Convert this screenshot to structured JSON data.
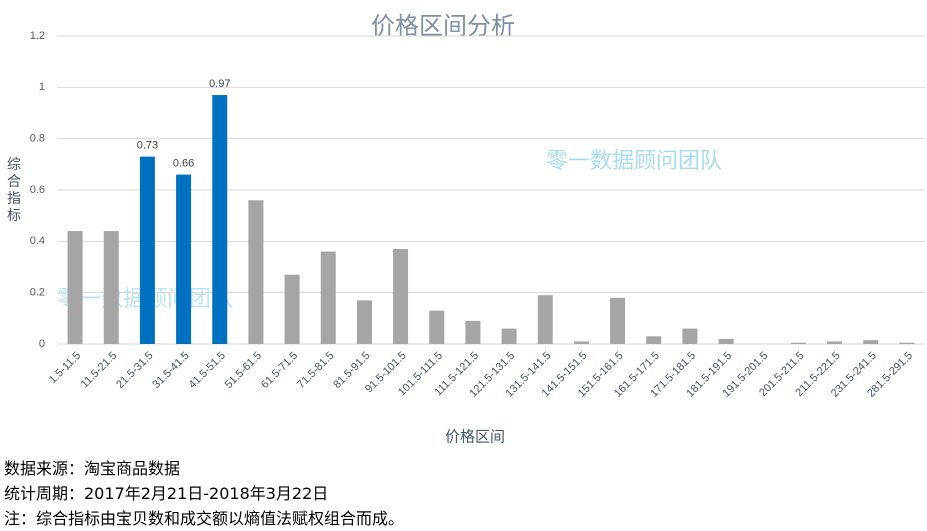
{
  "chart_data": {
    "type": "bar",
    "title": "价格区间分析",
    "x_label": "价格区间",
    "y_label": "综合指标",
    "watermark": "零一数据顾问团队",
    "categories": [
      "1.5-11.5",
      "11.5-21.5",
      "21.5-31.5",
      "31.5-41.5",
      "41.5-51.5",
      "51.5-61.5",
      "61.5-71.5",
      "71.5-81.5",
      "81.5-91.5",
      "91.5-101.5",
      "101.5-111.5",
      "111.5-121.5",
      "121.5-131.5",
      "131.5-141.5",
      "141.5-151.5",
      "151.5-161.5",
      "161.5-171.5",
      "171.5-181.5",
      "181.5-191.5",
      "191.5-201.5",
      "201.5-211.5",
      "211.5-221.5",
      "231.5-241.5",
      "281.5-291.5"
    ],
    "values": [
      0.44,
      0.44,
      0.73,
      0.66,
      0.97,
      0.56,
      0.27,
      0.36,
      0.17,
      0.37,
      0.13,
      0.09,
      0.06,
      0.19,
      0.01,
      0.18,
      0.03,
      0.06,
      0.02,
      0,
      0.005,
      0.01,
      0.015,
      0.005
    ],
    "value_labels": [
      null,
      null,
      "0.73",
      "0.66",
      "0.97",
      null,
      null,
      null,
      null,
      null,
      null,
      null,
      null,
      null,
      null,
      null,
      null,
      null,
      null,
      null,
      null,
      null,
      null,
      null
    ],
    "colors": [
      "#a5a5a5",
      "#a5a5a5",
      "#0070c0",
      "#0070c0",
      "#0070c0",
      "#a5a5a5",
      "#a5a5a5",
      "#a5a5a5",
      "#a5a5a5",
      "#a5a5a5",
      "#a5a5a5",
      "#a5a5a5",
      "#a5a5a5",
      "#a5a5a5",
      "#a5a5a5",
      "#a5a5a5",
      "#a5a5a5",
      "#a5a5a5",
      "#a5a5a5",
      "#a5a5a5",
      "#a5a5a5",
      "#a5a5a5",
      "#a5a5a5",
      "#a5a5a5"
    ],
    "ylim": [
      0,
      1.2
    ],
    "yticks": [
      0,
      0.2,
      0.4,
      0.6,
      0.8,
      1,
      1.2
    ],
    "grid": true
  },
  "notes": [
    "数据来源：淘宝商品数据",
    "统计周期：2017年2月21日-2018年3月22日",
    "注：综合指标由宝贝数和成交额以熵值法赋权组合而成。"
  ]
}
